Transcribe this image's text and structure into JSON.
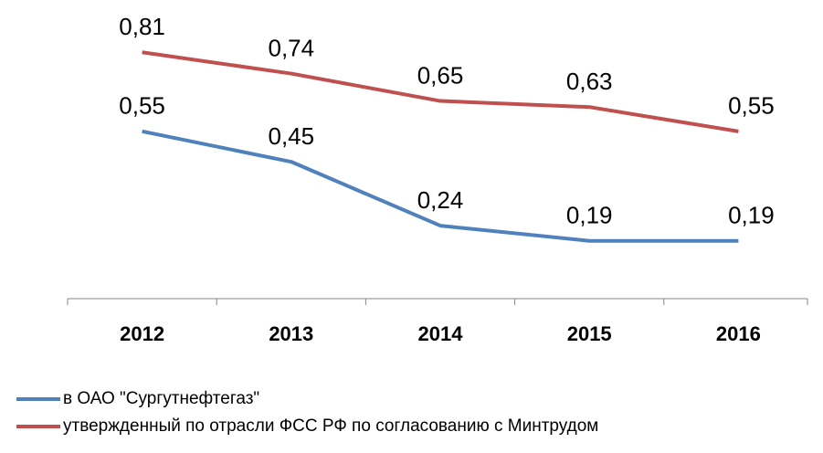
{
  "chart_data": {
    "type": "line",
    "categories": [
      "2012",
      "2013",
      "2014",
      "2015",
      "2016"
    ],
    "series": [
      {
        "name": "в ОАО \"Сургутнефтегаз\"",
        "color": "#4f81bd",
        "values": [
          0.55,
          0.45,
          0.24,
          0.19,
          0.19
        ],
        "value_labels": [
          "0,55",
          "0,45",
          "0,24",
          "0,19",
          "0,19"
        ]
      },
      {
        "name": "утвержденный по отрасли ФСС РФ по согласованию с Минтрудом",
        "color": "#c0504d",
        "values": [
          0.81,
          0.74,
          0.65,
          0.63,
          0.55
        ],
        "value_labels": [
          "0,81",
          "0,74",
          "0,65",
          "0,63",
          "0,55"
        ]
      }
    ],
    "ylim": [
      0,
      1
    ]
  }
}
